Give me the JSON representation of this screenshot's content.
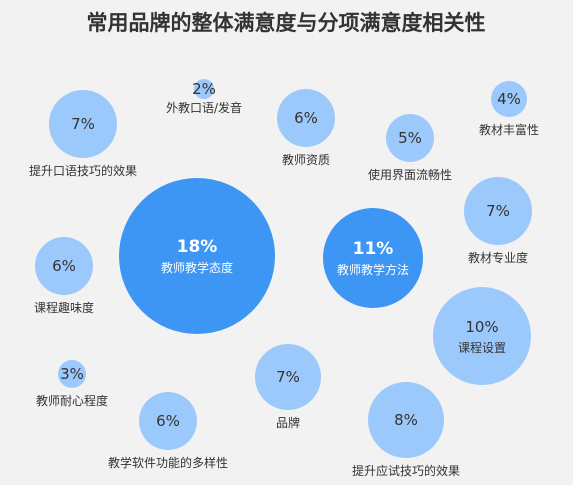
{
  "chart_data": {
    "type": "bubble",
    "title": "常用品牌的整体满意度与分项满意度相关性",
    "unit": "%",
    "items": [
      {
        "label": "教师教学态度",
        "value": 18,
        "value_label": "18%",
        "emphasis": "dark"
      },
      {
        "label": "教师教学方法",
        "value": 11,
        "value_label": "11%",
        "emphasis": "dark"
      },
      {
        "label": "课程设置",
        "value": 10,
        "value_label": "10%",
        "emphasis": "light"
      },
      {
        "label": "提升口语技巧的效果",
        "value": 7,
        "value_label": "7%",
        "emphasis": "light"
      },
      {
        "label": "教材专业度",
        "value": 7,
        "value_label": "7%",
        "emphasis": "light"
      },
      {
        "label": "品牌",
        "value": 7,
        "value_label": "7%",
        "emphasis": "light"
      },
      {
        "label": "提升应试技巧的效果",
        "value": 8,
        "value_label": "8%",
        "emphasis": "light"
      },
      {
        "label": "教师资质",
        "value": 6,
        "value_label": "6%",
        "emphasis": "light"
      },
      {
        "label": "课程趣味度",
        "value": 6,
        "value_label": "6%",
        "emphasis": "light"
      },
      {
        "label": "教学软件功能的多样性",
        "value": 6,
        "value_label": "6%",
        "emphasis": "light"
      },
      {
        "label": "使用界面流畅性",
        "value": 5,
        "value_label": "5%",
        "emphasis": "light"
      },
      {
        "label": "教材丰富性",
        "value": 4,
        "value_label": "4%",
        "emphasis": "light"
      },
      {
        "label": "教师耐心程度",
        "value": 3,
        "value_label": "3%",
        "emphasis": "light"
      },
      {
        "label": "外教口语/发音",
        "value": 2,
        "value_label": "2%",
        "emphasis": "light"
      }
    ],
    "colors": {
      "dark": "#3e96f4",
      "light": "#9cc9fb",
      "background": "#f2f2f2",
      "text": "#333333"
    }
  }
}
